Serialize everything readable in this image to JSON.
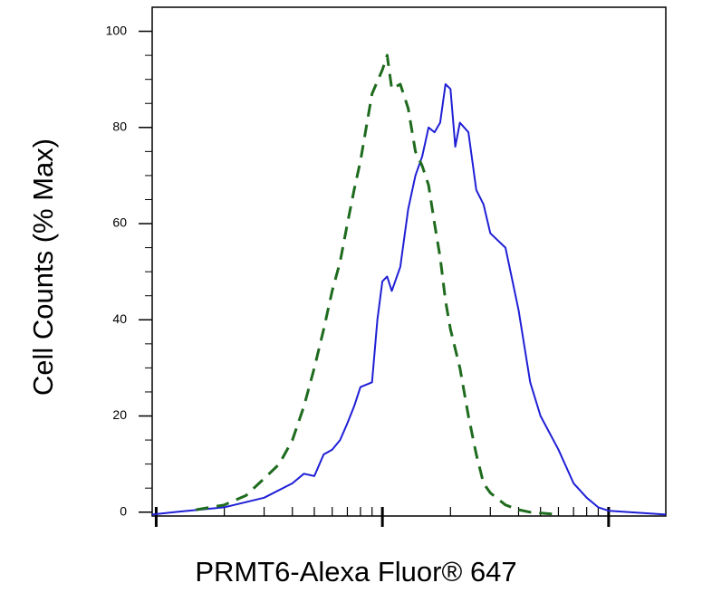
{
  "chart_data": {
    "type": "line",
    "xlabel": "PRMT6-Alexa Fluor® 647",
    "ylabel": "Cell Counts (% Max)",
    "xscale": "log",
    "xlim": [
      9.6,
      1790
    ],
    "xticks": [
      10,
      100,
      1000
    ],
    "ylim": [
      -0.8,
      105
    ],
    "yticks": [
      0,
      20,
      40,
      60,
      80,
      100
    ],
    "series": [
      {
        "color": "#1f1fd6",
        "dash": false,
        "x": [
          9.6,
          12,
          20,
          30,
          40,
          45,
          50,
          55,
          60,
          65,
          70,
          75,
          80,
          90,
          95,
          100,
          105,
          110,
          120,
          130,
          140,
          150,
          160,
          170,
          180,
          190,
          200,
          210,
          220,
          240,
          260,
          280,
          300,
          350,
          400,
          450,
          500,
          600,
          700,
          800,
          900,
          1000,
          1790
        ],
        "values": [
          -0.5,
          0,
          1,
          3,
          6,
          8,
          7.5,
          12,
          13,
          15,
          18.5,
          22,
          26,
          27,
          40,
          48,
          49,
          46,
          51,
          63,
          70,
          74,
          80,
          79,
          81,
          89,
          88,
          76,
          81,
          79,
          67,
          64,
          58,
          55,
          42,
          27,
          20,
          13,
          6,
          3,
          1,
          0.3,
          -0.5
        ]
      },
      {
        "color": "#1e6b1e",
        "dash": true,
        "x": [
          15,
          20,
          25,
          30,
          35,
          40,
          45,
          50,
          55,
          60,
          65,
          70,
          75,
          80,
          90,
          100,
          105,
          110,
          120,
          130,
          140,
          150,
          160,
          170,
          180,
          190,
          200,
          220,
          240,
          260,
          280,
          300,
          350,
          400,
          450,
          600
        ],
        "values": [
          0.5,
          1.5,
          3.5,
          7,
          10,
          15,
          22,
          30,
          38,
          46,
          52,
          60,
          67,
          73,
          87,
          92,
          95,
          88,
          89,
          84,
          75,
          72,
          68,
          60,
          53,
          44,
          38,
          30,
          20,
          12,
          6,
          4,
          1.5,
          0.5,
          0,
          -0.5
        ]
      }
    ]
  }
}
